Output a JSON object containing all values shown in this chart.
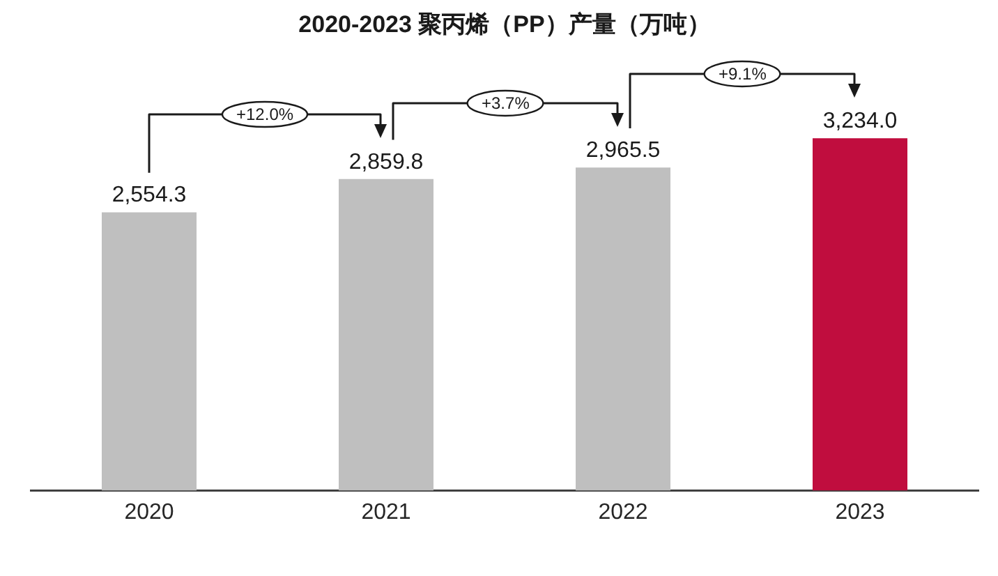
{
  "chart_data": {
    "type": "bar",
    "title": "2020-2023 聚丙烯（PP）产量（万吨）",
    "categories": [
      "2020",
      "2021",
      "2022",
      "2023"
    ],
    "values": [
      2554.3,
      2859.8,
      2965.5,
      3234.0
    ],
    "colors": [
      "#bfbfbf",
      "#bfbfbf",
      "#bfbfbf",
      "#c00d3e"
    ],
    "value_labels": [
      "2,554.3",
      "2,859.8",
      "2,965.5",
      "3,234.0"
    ],
    "annotations": [
      "+12.0%",
      "+3.7%",
      "+9.1%"
    ]
  }
}
